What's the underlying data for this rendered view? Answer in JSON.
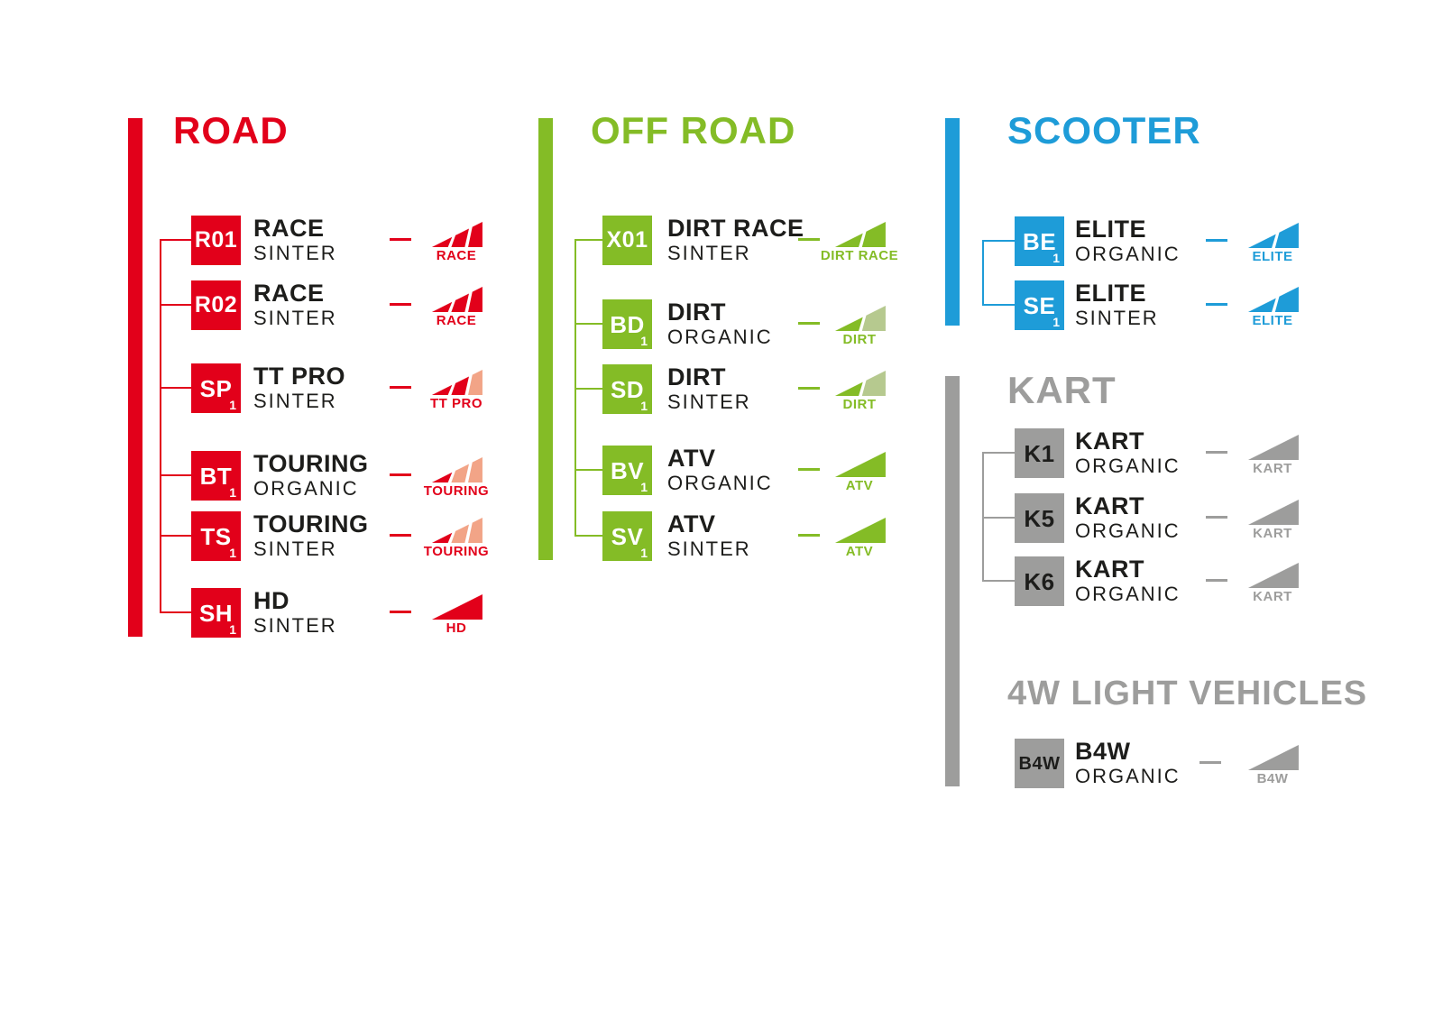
{
  "page": {
    "background": "#FFFFFF",
    "text_color": "#1D1D1B"
  },
  "sections": [
    {
      "id": "road",
      "title": "ROAD",
      "color": "#E2001A",
      "accent_light": "#F2A487",
      "box_text_color": "#FFFFFF",
      "items": [
        {
          "code": "R01",
          "code_sub": "",
          "name": "RACE",
          "compound": "SINTER",
          "meter": {
            "label": "RACE",
            "segments": [
              "#E2001A",
              "#E2001A",
              "#E2001A"
            ]
          }
        },
        {
          "code": "R02",
          "code_sub": "",
          "name": "RACE",
          "compound": "SINTER",
          "meter": {
            "label": "RACE",
            "segments": [
              "#E2001A",
              "#E2001A",
              "#E2001A"
            ]
          }
        },
        {
          "code": "SP",
          "code_sub": "1",
          "name": "TT PRO",
          "compound": "SINTER",
          "meter": {
            "label": "TT PRO",
            "segments": [
              "#E2001A",
              "#E2001A",
              "#F2A487"
            ]
          }
        },
        {
          "code": "BT",
          "code_sub": "1",
          "name": "TOURING",
          "compound": "ORGANIC",
          "meter": {
            "label": "TOURING",
            "segments": [
              "#E2001A",
              "#F2A487",
              "#F2A487"
            ]
          }
        },
        {
          "code": "TS",
          "code_sub": "1",
          "name": "TOURING",
          "compound": "SINTER",
          "meter": {
            "label": "TOURING",
            "segments": [
              "#E2001A",
              "#F2A487",
              "#F2A487"
            ]
          }
        },
        {
          "code": "SH",
          "code_sub": "1",
          "name": "HD",
          "compound": "SINTER",
          "meter": {
            "label": "HD",
            "segments": [
              "#E2001A"
            ]
          }
        }
      ]
    },
    {
      "id": "offroad",
      "title": "OFF ROAD",
      "color": "#84BC26",
      "accent_light": "#B6C98F",
      "box_text_color": "#FFFFFF",
      "items": [
        {
          "code": "X01",
          "code_sub": "",
          "name": "DIRT RACE",
          "compound": "SINTER",
          "meter": {
            "label": "DIRT RACE",
            "segments": [
              "#84BC26",
              "#84BC26"
            ]
          }
        },
        {
          "code": "BD",
          "code_sub": "1",
          "name": "DIRT",
          "compound": "ORGANIC",
          "meter": {
            "label": "DIRT",
            "segments": [
              "#84BC26",
              "#B6C98F"
            ]
          }
        },
        {
          "code": "SD",
          "code_sub": "1",
          "name": "DIRT",
          "compound": "SINTER",
          "meter": {
            "label": "DIRT",
            "segments": [
              "#84BC26",
              "#B6C98F"
            ]
          }
        },
        {
          "code": "BV",
          "code_sub": "1",
          "name": "ATV",
          "compound": "ORGANIC",
          "meter": {
            "label": "ATV",
            "segments": [
              "#84BC26"
            ]
          }
        },
        {
          "code": "SV",
          "code_sub": "1",
          "name": "ATV",
          "compound": "SINTER",
          "meter": {
            "label": "ATV",
            "segments": [
              "#84BC26"
            ]
          }
        }
      ]
    },
    {
      "id": "scooter",
      "title": "SCOOTER",
      "color": "#1E9CD8",
      "accent_light": "#1E9CD8",
      "box_text_color": "#FFFFFF",
      "items": [
        {
          "code": "BE",
          "code_sub": "1",
          "name": "ELITE",
          "compound": "ORGANIC",
          "meter": {
            "label": "ELITE",
            "segments": [
              "#1E9CD8",
              "#1E9CD8"
            ]
          }
        },
        {
          "code": "SE",
          "code_sub": "1",
          "name": "ELITE",
          "compound": "SINTER",
          "meter": {
            "label": "ELITE",
            "segments": [
              "#1E9CD8",
              "#1E9CD8"
            ]
          }
        }
      ]
    },
    {
      "id": "kart",
      "title": "KART",
      "color": "#9D9D9C",
      "accent_light": "#9D9D9C",
      "box_text_color": "#1D1D1B",
      "items": [
        {
          "code": "K1",
          "code_sub": "",
          "name": "KART",
          "compound": "ORGANIC",
          "meter": {
            "label": "KART",
            "segments": [
              "#9D9D9C"
            ]
          }
        },
        {
          "code": "K5",
          "code_sub": "",
          "name": "KART",
          "compound": "ORGANIC",
          "meter": {
            "label": "KART",
            "segments": [
              "#9D9D9C"
            ]
          }
        },
        {
          "code": "K6",
          "code_sub": "",
          "name": "KART",
          "compound": "ORGANIC",
          "meter": {
            "label": "KART",
            "segments": [
              "#9D9D9C"
            ]
          }
        }
      ]
    },
    {
      "id": "lv4w",
      "title": "4W LIGHT VEHICLES",
      "color": "#9D9D9C",
      "accent_light": "#9D9D9C",
      "box_text_color": "#1D1D1B",
      "items": [
        {
          "code": "B4W",
          "code_sub": "",
          "name": "B4W",
          "compound": "ORGANIC",
          "meter": {
            "label": "B4W",
            "segments": [
              "#9D9D9C"
            ]
          }
        }
      ]
    }
  ]
}
